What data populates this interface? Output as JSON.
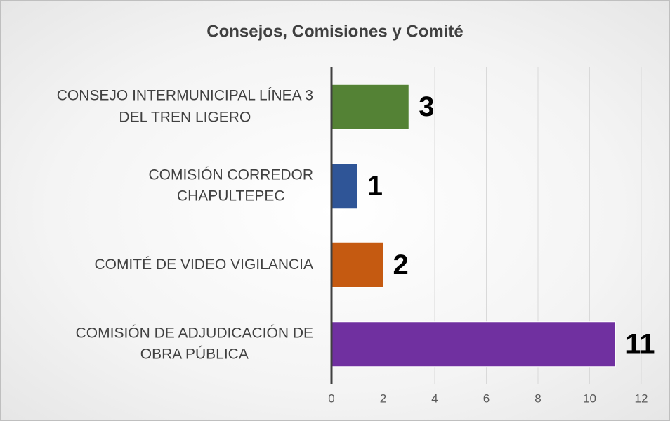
{
  "chart_data": {
    "type": "hbar",
    "title": "Consejos, Comisiones y Comité",
    "categories": [
      "CONSEJO INTERMUNICIPAL LÍNEA 3\nDEL TREN LIGERO",
      "COMISIÓN CORREDOR\nCHAPULTEPEC",
      "COMITÉ DE VIDEO VIGILANCIA",
      "COMISIÓN DE ADJUDICACIÓN DE\nOBRA PÚBLICA"
    ],
    "values": [
      3,
      1,
      2,
      11
    ],
    "colors": [
      "#548235",
      "#2f5597",
      "#c55a11",
      "#7030a0"
    ],
    "xlim": [
      0,
      12
    ],
    "xticks": [
      0,
      2,
      4,
      6,
      8,
      10,
      12
    ],
    "grid": true
  }
}
